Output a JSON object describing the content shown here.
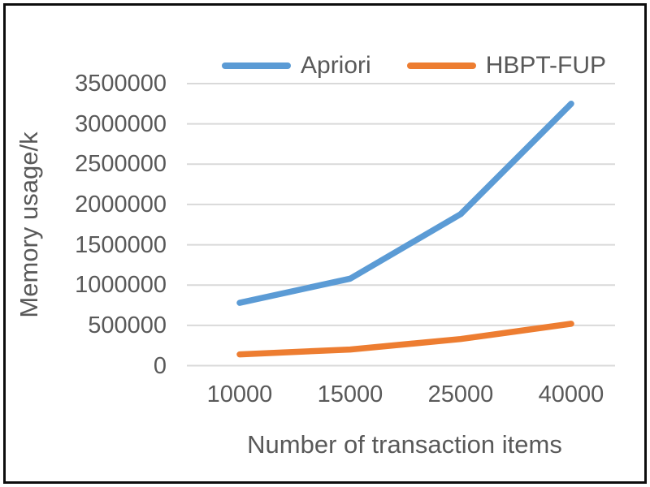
{
  "chart_data": {
    "type": "line",
    "categories": [
      "10000",
      "15000",
      "25000",
      "40000"
    ],
    "series": [
      {
        "name": "Apriori",
        "color": "#5B9BD5",
        "values": [
          780000,
          1080000,
          1880000,
          3250000
        ]
      },
      {
        "name": "HBPT-FUP",
        "color": "#ED7D31",
        "values": [
          140000,
          200000,
          330000,
          520000
        ]
      }
    ],
    "xlabel": "Number of transaction items",
    "ylabel": "Memory usage/k",
    "ylim": [
      0,
      3500000
    ],
    "y_tick_step": 500000,
    "y_tick_labels": [
      "0",
      "500000",
      "1000000",
      "1500000",
      "2000000",
      "2500000",
      "3000000",
      "3500000"
    ],
    "grid": "horizontal",
    "legend_position": "top",
    "grid_color": "#D9D9D9",
    "text_color": "#595959",
    "frame_color": "#0d0d0d"
  }
}
